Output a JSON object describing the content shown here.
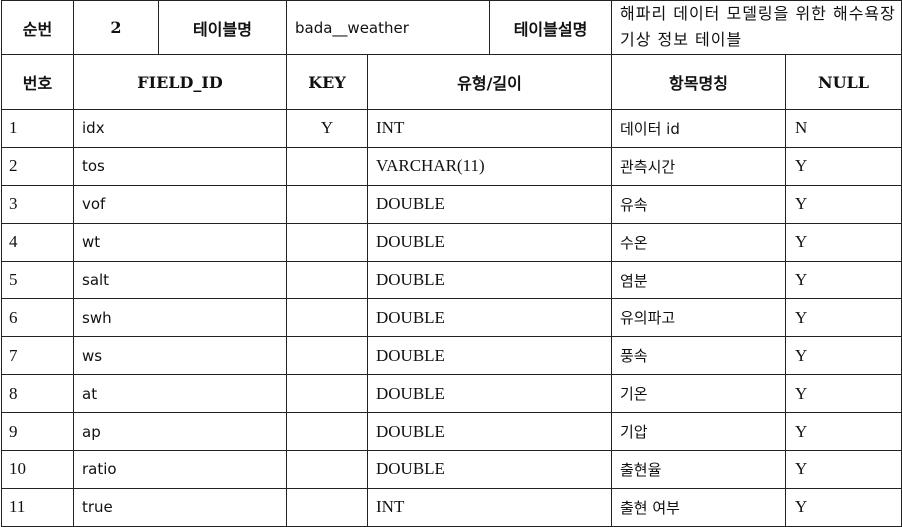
{
  "header": {
    "seq_label": "순번",
    "seq_value": "2",
    "table_name_label": "테이블명",
    "table_name_value": "bada__weather",
    "table_desc_label": "테이블설명",
    "table_desc_value": "해파리 데이터 모델링을 위한 해수욕장 기상 정보 테이블"
  },
  "columns": {
    "no": "번호",
    "field_id": "FIELD_ID",
    "key": "KEY",
    "type": "유형/길이",
    "name": "항목명칭",
    "null": "NULL"
  },
  "rows": [
    {
      "no": "1",
      "field_id": "idx",
      "key": "Y",
      "type": "INT",
      "name": "데이터 id",
      "null": "N"
    },
    {
      "no": "2",
      "field_id": "tos",
      "key": "",
      "type": "VARCHAR(11)",
      "name": "관측시간",
      "null": "Y"
    },
    {
      "no": "3",
      "field_id": "vof",
      "key": "",
      "type": "DOUBLE",
      "name": "유속",
      "null": "Y"
    },
    {
      "no": "4",
      "field_id": "wt",
      "key": "",
      "type": "DOUBLE",
      "name": "수온",
      "null": "Y"
    },
    {
      "no": "5",
      "field_id": "salt",
      "key": "",
      "type": "DOUBLE",
      "name": "염분",
      "null": "Y"
    },
    {
      "no": "6",
      "field_id": "swh",
      "key": "",
      "type": "DOUBLE",
      "name": "유의파고",
      "null": "Y"
    },
    {
      "no": "7",
      "field_id": "ws",
      "key": "",
      "type": "DOUBLE",
      "name": "풍속",
      "null": "Y"
    },
    {
      "no": "8",
      "field_id": "at",
      "key": "",
      "type": "DOUBLE",
      "name": "기온",
      "null": "Y"
    },
    {
      "no": "9",
      "field_id": "ap",
      "key": "",
      "type": "DOUBLE",
      "name": "기압",
      "null": "Y"
    },
    {
      "no": "10",
      "field_id": "ratio",
      "key": "",
      "type": "DOUBLE",
      "name": "출현율",
      "null": "Y"
    },
    {
      "no": "11",
      "field_id": "true",
      "key": "",
      "type": "INT",
      "name": "출현 여부",
      "null": "Y"
    }
  ]
}
